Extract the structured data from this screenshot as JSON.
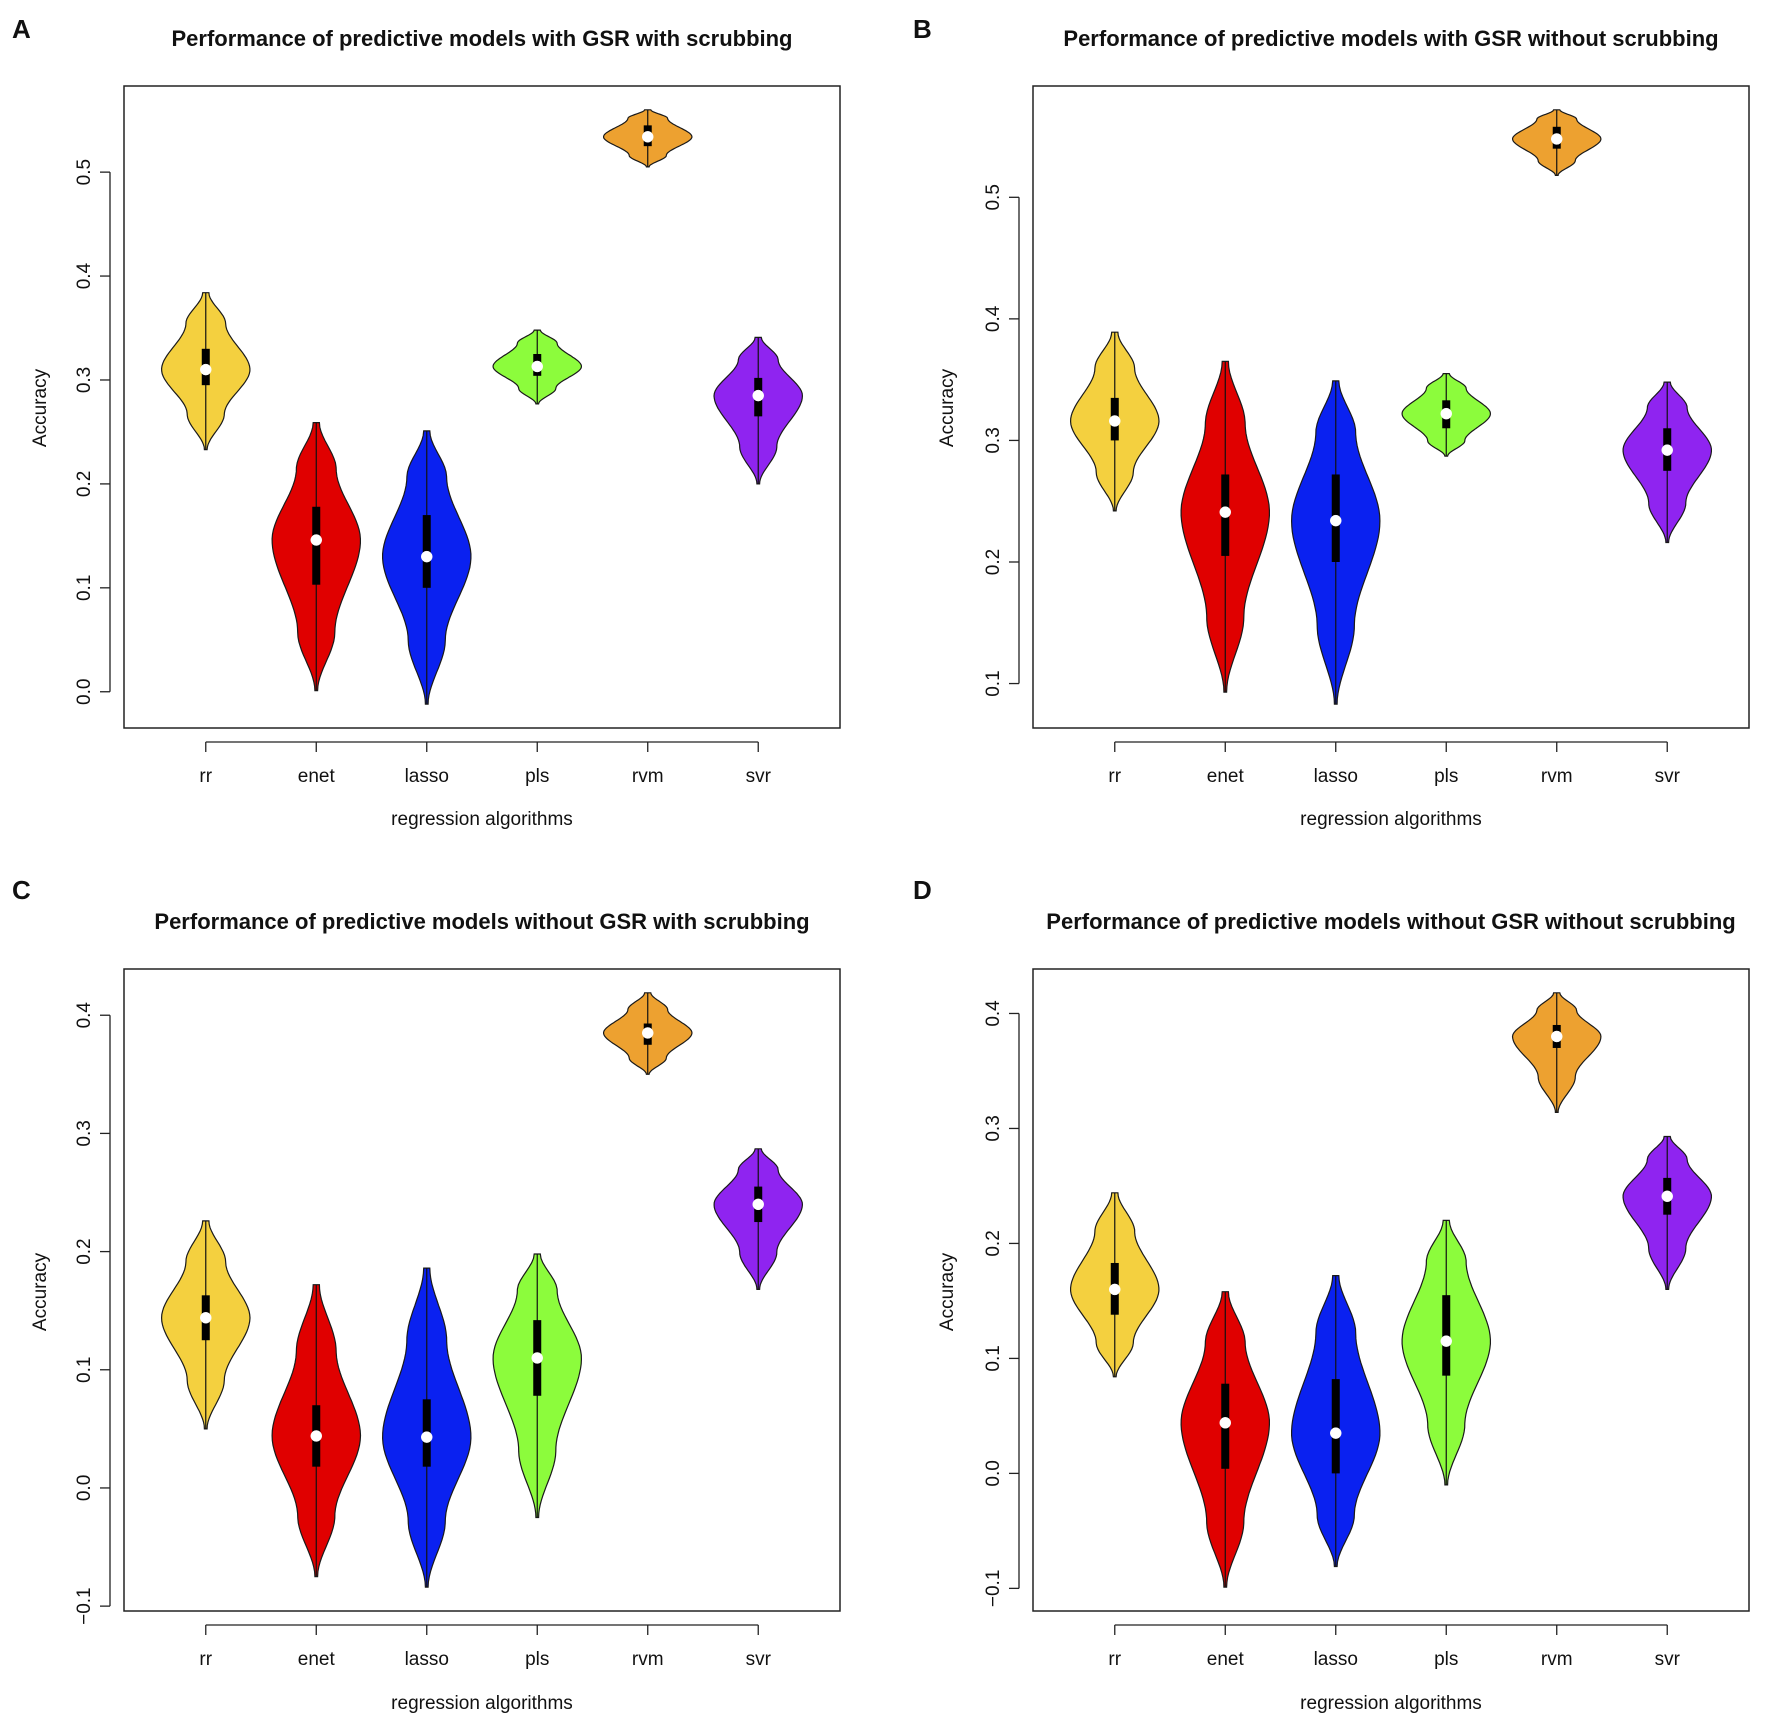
{
  "chart_data": [
    {
      "type": "violin",
      "panel_label": "A",
      "title": "Performance of predictive models with GSR with scrubbing",
      "xlabel": "regression algorithms",
      "ylabel": "Accuracy",
      "ylim": [
        0.0,
        0.5
      ],
      "yticks": [
        "0.0",
        "0.1",
        "0.2",
        "0.3",
        "0.4",
        "0.5"
      ],
      "categories": [
        "rr",
        "enet",
        "lasso",
        "pls",
        "rvm",
        "svr"
      ],
      "colors": [
        "#F4D03F",
        "#E00000",
        "#0A21F0",
        "#8CFC3C",
        "#EDA130",
        "#8F24F0"
      ],
      "min": [
        0.233,
        0.001,
        -0.012,
        0.277,
        0.505,
        0.2
      ],
      "max": [
        0.384,
        0.259,
        0.251,
        0.348,
        0.56,
        0.341
      ],
      "q1": [
        0.295,
        0.103,
        0.1,
        0.304,
        0.525,
        0.265
      ],
      "q3": [
        0.33,
        0.178,
        0.17,
        0.325,
        0.545,
        0.302
      ],
      "median": [
        0.31,
        0.146,
        0.13,
        0.313,
        0.534,
        0.285
      ]
    },
    {
      "type": "violin",
      "panel_label": "B",
      "title": "Performance of predictive models with GSR without scrubbing",
      "xlabel": "regression algorithms",
      "ylabel": "Accuracy",
      "ylim": [
        0.1,
        0.5
      ],
      "yticks": [
        "0.1",
        "0.2",
        "0.3",
        "0.4",
        "0.5"
      ],
      "categories": [
        "rr",
        "enet",
        "lasso",
        "pls",
        "rvm",
        "svr"
      ],
      "colors": [
        "#F4D03F",
        "#E00000",
        "#0A21F0",
        "#8CFC3C",
        "#EDA130",
        "#8F24F0"
      ],
      "min": [
        0.242,
        0.093,
        0.083,
        0.287,
        0.518,
        0.216
      ],
      "max": [
        0.389,
        0.365,
        0.349,
        0.355,
        0.572,
        0.348
      ],
      "q1": [
        0.3,
        0.205,
        0.2,
        0.31,
        0.54,
        0.275
      ],
      "q3": [
        0.335,
        0.272,
        0.272,
        0.333,
        0.558,
        0.31
      ],
      "median": [
        0.316,
        0.241,
        0.234,
        0.322,
        0.548,
        0.292
      ]
    },
    {
      "type": "violin",
      "panel_label": "C",
      "title": "Performance of predictive models without GSR with scrubbing",
      "xlabel": "regression algorithms",
      "ylabel": "Accuracy",
      "ylim": [
        -0.1,
        0.4
      ],
      "yticks": [
        "−0.1",
        "0.0",
        "0.1",
        "0.2",
        "0.3",
        "0.4"
      ],
      "categories": [
        "rr",
        "enet",
        "lasso",
        "pls",
        "rvm",
        "svr"
      ],
      "colors": [
        "#F4D03F",
        "#E00000",
        "#0A21F0",
        "#8CFC3C",
        "#EDA130",
        "#8F24F0"
      ],
      "min": [
        0.05,
        -0.075,
        -0.084,
        -0.025,
        0.35,
        0.168
      ],
      "max": [
        0.226,
        0.172,
        0.186,
        0.198,
        0.419,
        0.287
      ],
      "q1": [
        0.125,
        0.018,
        0.018,
        0.078,
        0.375,
        0.225
      ],
      "q3": [
        0.163,
        0.07,
        0.075,
        0.142,
        0.393,
        0.255
      ],
      "median": [
        0.144,
        0.044,
        0.043,
        0.11,
        0.385,
        0.24
      ]
    },
    {
      "type": "violin",
      "panel_label": "D",
      "title": "Performance of predictive models without GSR without scrubbing",
      "xlabel": "regression algorithms",
      "ylabel": "Accuracy",
      "ylim": [
        -0.1,
        0.4
      ],
      "yticks": [
        "−0.1",
        "0.0",
        "0.1",
        "0.2",
        "0.3",
        "0.4"
      ],
      "categories": [
        "rr",
        "enet",
        "lasso",
        "pls",
        "rvm",
        "svr"
      ],
      "colors": [
        "#F4D03F",
        "#E00000",
        "#0A21F0",
        "#8CFC3C",
        "#EDA130",
        "#8F24F0"
      ],
      "min": [
        0.084,
        -0.099,
        -0.081,
        -0.01,
        0.314,
        0.16
      ],
      "max": [
        0.244,
        0.158,
        0.172,
        0.22,
        0.418,
        0.293
      ],
      "q1": [
        0.138,
        0.004,
        0.0,
        0.085,
        0.37,
        0.225
      ],
      "q3": [
        0.183,
        0.078,
        0.082,
        0.155,
        0.39,
        0.257
      ],
      "median": [
        0.16,
        0.044,
        0.035,
        0.115,
        0.38,
        0.241
      ]
    }
  ]
}
